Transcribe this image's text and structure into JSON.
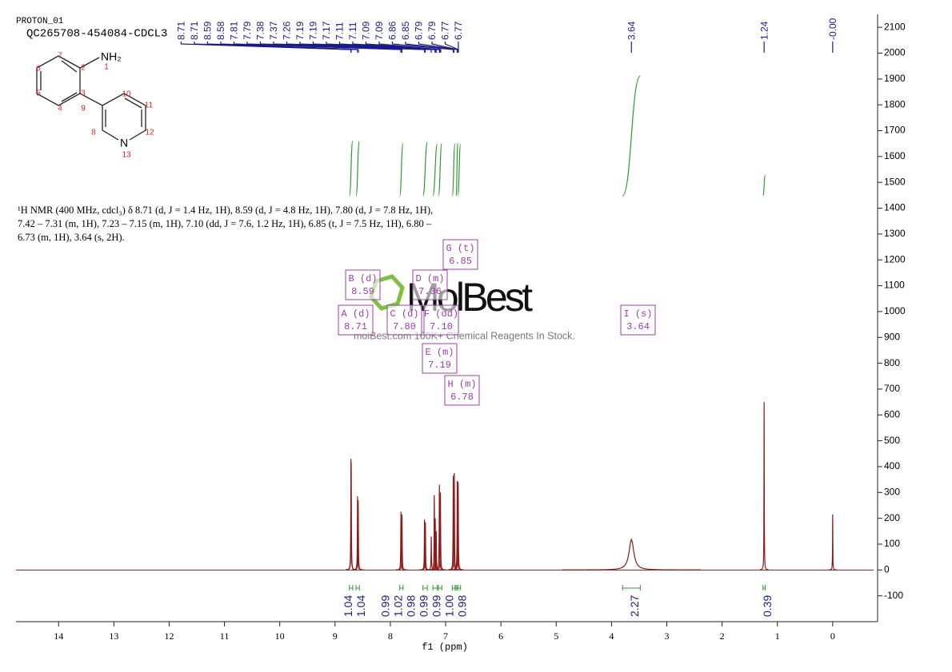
{
  "header": {
    "experiment": "PROTON_01",
    "sample": "QC265708-454084-CDCL3"
  },
  "molecule": {
    "amine": "NH₂",
    "nitrogen": "N",
    "atom_numbers": [
      1,
      2,
      3,
      4,
      5,
      6,
      7,
      8,
      9,
      10,
      11,
      12,
      13
    ]
  },
  "description": [
    "¹H NMR (400 MHz, cdcl₃) δ 8.71 (d, J = 1.4 Hz, 1H), 8.59 (d, J = 4.8 Hz, 1H), 7.80 (d, J = 7.8 Hz, 1H),",
    "7.42 – 7.31 (m, 1H), 7.23 – 7.15 (m, 1H), 7.10 (dd, J = 7.6, 1.2 Hz, 1H), 6.85 (t, J = 7.5 Hz, 1H), 6.80 –",
    "6.73 (m, 1H), 3.64 (s, 2H)."
  ],
  "watermark": {
    "brand": "MolBest",
    "tagline": "molBest.com 160K+ Chemical Reagents In Stock."
  },
  "chart_data": {
    "type": "nmr",
    "x_label": "f1 (ppm)",
    "xlim": [
      14.77,
      -0.74
    ],
    "xticks": [
      14,
      13,
      12,
      11,
      10,
      9,
      8,
      7,
      6,
      5,
      4,
      3,
      2,
      1,
      0
    ],
    "ylim": [
      -200,
      2150
    ],
    "yticks": [
      -100,
      0,
      100,
      200,
      300,
      400,
      500,
      600,
      700,
      800,
      900,
      1000,
      1100,
      1200,
      1300,
      1400,
      1500,
      1600,
      1700,
      1800,
      1900,
      2000,
      2100
    ],
    "color": "#8b1a1a",
    "peaks": {
      "ppm": [
        8.712,
        8.708,
        8.593,
        8.581,
        7.808,
        7.789,
        7.382,
        7.366,
        7.26,
        7.205,
        7.188,
        7.17,
        7.113,
        7.094,
        6.862,
        6.843,
        6.789,
        6.773,
        3.64,
        1.24,
        0.0
      ],
      "height": [
        430,
        415,
        285,
        270,
        225,
        215,
        195,
        185,
        130,
        290,
        200,
        150,
        330,
        300,
        365,
        375,
        345,
        340,
        120,
        650,
        215
      ],
      "width": [
        0.004,
        0.004,
        0.004,
        0.004,
        0.004,
        0.004,
        0.004,
        0.004,
        0.004,
        0.004,
        0.004,
        0.004,
        0.004,
        0.004,
        0.004,
        0.004,
        0.004,
        0.004,
        0.05,
        0.003,
        0.003
      ]
    },
    "peak_picks": [
      8.71,
      8.71,
      8.59,
      8.58,
      7.81,
      7.79,
      7.38,
      7.37,
      7.26,
      7.19,
      7.19,
      7.17,
      7.11,
      7.11,
      7.09,
      7.09,
      6.86,
      6.85,
      6.79,
      6.79,
      6.77,
      6.77,
      3.64,
      1.24,
      {
        "value": 0,
        "label": "-0.00"
      }
    ],
    "pick_color": "#1a1a8c",
    "integrals": {
      "ranges": [
        [
          8.74,
          8.68
        ],
        [
          8.62,
          8.56
        ],
        [
          7.83,
          7.77
        ],
        [
          7.41,
          7.33
        ],
        [
          7.23,
          7.15
        ],
        [
          7.13,
          7.07
        ],
        [
          6.88,
          6.83
        ],
        [
          6.81,
          6.78
        ],
        [
          6.78,
          6.73
        ],
        [
          3.8,
          3.48
        ],
        [
          1.26,
          1.22
        ]
      ],
      "values": [
        1.04,
        1.04,
        0.99,
        1.02,
        0.98,
        0.99,
        0.99,
        1.0,
        0.98,
        2.27,
        0.39
      ],
      "value_labels": [
        "1.04",
        "1.04",
        "0.99",
        "1.02",
        "0.98",
        "0.99",
        "0.99",
        "1.00",
        "0.98",
        "2.27",
        "0.39"
      ],
      "color": "#2e9a2e"
    },
    "multiplets": [
      {
        "label": "A (d)",
        "shift": 8.71
      },
      {
        "label": "B (d)",
        "shift": 8.59
      },
      {
        "label": "C (d)",
        "shift": {
          "value": 7.8,
          "label": "7.80"
        }
      },
      {
        "label": "D (m)",
        "shift": 7.36
      },
      {
        "label": "E (m)",
        "shift": 7.19
      },
      {
        "label": "F (dd)",
        "shift": {
          "value": 7.1,
          "label": "7.10"
        }
      },
      {
        "label": "G (t)",
        "shift": 6.85
      },
      {
        "label": "H (m)",
        "shift": 6.78
      },
      {
        "label": "I (s)",
        "shift": 3.64
      }
    ]
  }
}
